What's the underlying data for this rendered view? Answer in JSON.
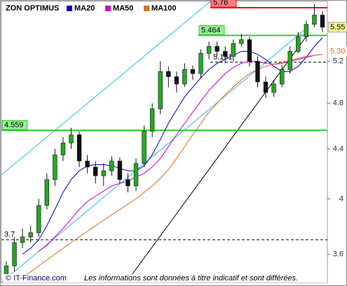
{
  "chart_data": {
    "type": "candlestick",
    "title": "ZON OPTIMUS",
    "log_scale": true,
    "ylim": [
      3.41,
      5.83
    ],
    "yticks": [
      5.2,
      4.8,
      4.4,
      4,
      3.6
    ],
    "candles": {
      "up_color": "#22aa22",
      "down_color": "#111111",
      "open": [
        3.45,
        3.52,
        3.68,
        3.72,
        3.75,
        3.95,
        4.15,
        4.35,
        4.45,
        4.52,
        4.3,
        4.25,
        4.18,
        4.22,
        4.3,
        4.15,
        4.1,
        4.28,
        4.55,
        4.75,
        5.1,
        5.05,
        4.98,
        5.12,
        5.08,
        5.28,
        5.35,
        5.3,
        5.25,
        5.38,
        5.42,
        5.2,
        5.0,
        4.9,
        4.98,
        5.12,
        5.3,
        5.45,
        5.58,
        5.68
      ],
      "high": [
        3.55,
        3.72,
        3.78,
        3.8,
        4.0,
        4.2,
        4.4,
        4.5,
        4.58,
        4.55,
        4.35,
        4.3,
        4.28,
        4.34,
        4.33,
        4.2,
        4.32,
        4.6,
        4.8,
        5.2,
        5.15,
        5.1,
        5.18,
        5.16,
        5.32,
        5.4,
        5.4,
        5.35,
        5.42,
        5.48,
        5.45,
        5.25,
        5.05,
        5.02,
        5.16,
        5.35,
        5.5,
        5.62,
        5.8,
        5.72
      ],
      "low": [
        3.42,
        3.48,
        3.64,
        3.68,
        3.72,
        3.92,
        4.1,
        4.3,
        4.4,
        4.25,
        4.2,
        4.12,
        4.1,
        4.18,
        4.12,
        4.05,
        4.06,
        4.25,
        4.5,
        4.7,
        4.95,
        4.9,
        4.95,
        5.02,
        5.04,
        5.22,
        5.25,
        5.18,
        5.2,
        5.35,
        5.15,
        4.95,
        4.85,
        4.86,
        4.95,
        5.08,
        5.28,
        5.4,
        5.55,
        5.5
      ],
      "close": [
        3.52,
        3.68,
        3.72,
        3.75,
        3.95,
        4.15,
        4.35,
        4.45,
        4.52,
        4.3,
        4.25,
        4.18,
        4.22,
        4.3,
        4.15,
        4.1,
        4.28,
        4.55,
        4.75,
        5.1,
        5.05,
        4.98,
        5.12,
        5.08,
        5.28,
        5.35,
        5.3,
        5.25,
        5.38,
        5.42,
        5.2,
        5.0,
        4.9,
        4.98,
        5.12,
        5.3,
        5.45,
        5.58,
        5.68,
        5.55
      ]
    },
    "series": [
      {
        "name": "MA20",
        "color": "#0000cc",
        "values": [
          null,
          null,
          3.6,
          3.64,
          3.7,
          3.8,
          3.92,
          4.05,
          4.15,
          4.22,
          4.26,
          4.27,
          4.27,
          4.26,
          4.24,
          4.22,
          4.22,
          4.26,
          4.35,
          4.48,
          4.62,
          4.74,
          4.86,
          4.95,
          5.04,
          5.12,
          5.18,
          5.22,
          5.26,
          5.3,
          5.3,
          5.27,
          5.22,
          5.15,
          5.1,
          5.1,
          5.15,
          5.24,
          5.35,
          5.44
        ]
      },
      {
        "name": "MA50",
        "color": "#cc00cc",
        "values": [
          null,
          null,
          null,
          null,
          3.62,
          3.66,
          3.72,
          3.78,
          3.85,
          3.92,
          3.98,
          4.02,
          4.06,
          4.1,
          4.12,
          4.14,
          4.17,
          4.2,
          4.25,
          4.32,
          4.42,
          4.52,
          4.62,
          4.72,
          4.82,
          4.92,
          5.0,
          5.08,
          5.14,
          5.18,
          5.2,
          5.2,
          5.18,
          5.17,
          5.18,
          5.2,
          5.22,
          5.24,
          5.26,
          5.27
        ]
      },
      {
        "name": "MA100",
        "color": "#e07020",
        "values": [
          null,
          3.42,
          3.45,
          3.48,
          3.52,
          3.56,
          3.6,
          3.64,
          3.68,
          3.72,
          3.76,
          3.8,
          3.84,
          3.88,
          3.92,
          3.96,
          4.0,
          4.05,
          4.1,
          4.16,
          4.23,
          4.32,
          4.42,
          4.52,
          4.62,
          4.72,
          4.8,
          4.88,
          4.95,
          5.02,
          5.08,
          5.12,
          5.15,
          5.17,
          5.19,
          5.21,
          5.23,
          5.25,
          5.26,
          5.27
        ]
      }
    ],
    "levels": [
      {
        "value": 5.76,
        "color": "#ff0000",
        "box": "#ff8080",
        "dashed": false
      },
      {
        "value": 5.464,
        "color": "#33cc33",
        "box": "#99ee99",
        "dashed": false
      },
      {
        "value": 5.191,
        "color": "#000000",
        "dashed": true
      },
      {
        "value": 4.559,
        "color": "#22cc22",
        "box": "#99ee99",
        "dashed": false
      },
      {
        "value": 3.7,
        "color": "#000000",
        "dashed": true
      }
    ],
    "price_markers": [
      {
        "value": 5.55,
        "color": "#ffff99",
        "text_color": "#000000"
      },
      {
        "value": 5.3,
        "label": "5.30",
        "color": "#ffffff",
        "text_color": "#e07020"
      }
    ],
    "copyright": "© IT-Finance.com",
    "disclaimer": "Les informations sont données à titre indicatif et sont différées."
  }
}
